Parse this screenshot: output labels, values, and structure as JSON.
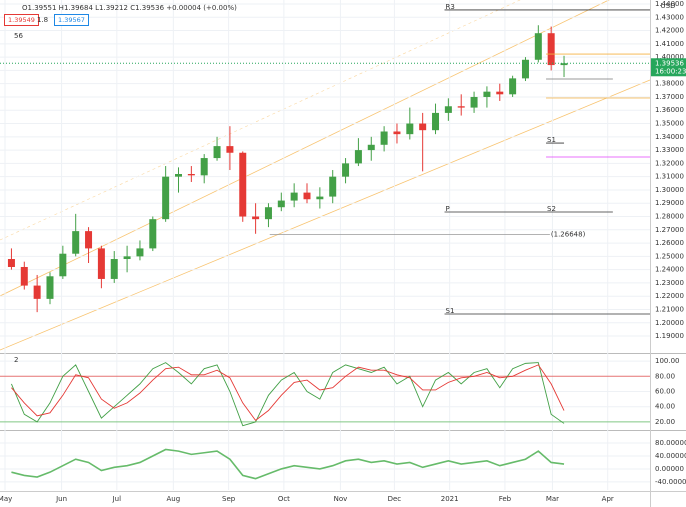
{
  "chart_data": [
    {
      "type": "candlestick",
      "ohlc_text": "O1.39551 H1.39684 L1.39212 C1.39536 +0.00004 (+0.00%)",
      "sell": "1.39549",
      "spread": "1.8",
      "buy": "1.39567",
      "study": "56",
      "currency": "USD",
      "up_color": "#43a047",
      "down_color": "#e53935",
      "x": [
        0.5,
        1.5,
        2.5,
        3.5,
        4.5,
        5.5,
        6.5,
        7.5,
        8.5,
        9.5,
        10.5,
        11.5,
        12.5,
        13.5,
        14.5,
        15.5,
        16.5,
        17.5,
        18.5,
        19.5,
        20.5,
        21.5,
        22.5,
        23.5,
        24.5,
        25.5,
        26.5,
        27.5,
        28.5,
        29.5,
        30.5,
        31.5,
        32.5,
        33.5,
        34.5,
        35.5,
        36.5,
        37.5,
        38.5,
        39.5,
        40.5,
        41.5,
        42.5,
        43.5
      ],
      "open": [
        1.248,
        1.242,
        1.228,
        1.218,
        1.235,
        1.252,
        1.269,
        1.256,
        1.233,
        1.248,
        1.25,
        1.256,
        1.278,
        1.31,
        1.312,
        1.311,
        1.324,
        1.333,
        1.328,
        1.28,
        1.278,
        1.287,
        1.292,
        1.298,
        1.293,
        1.295,
        1.31,
        1.32,
        1.33,
        1.334,
        1.344,
        1.342,
        1.35,
        1.345,
        1.358,
        1.363,
        1.362,
        1.37,
        1.374,
        1.372,
        1.384,
        1.398,
        1.418,
        1.394
      ],
      "high": [
        1.256,
        1.246,
        1.236,
        1.238,
        1.258,
        1.282,
        1.272,
        1.258,
        1.254,
        1.258,
        1.262,
        1.28,
        1.318,
        1.317,
        1.318,
        1.327,
        1.34,
        1.348,
        1.329,
        1.29,
        1.29,
        1.298,
        1.305,
        1.305,
        1.302,
        1.315,
        1.324,
        1.339,
        1.34,
        1.348,
        1.35,
        1.362,
        1.358,
        1.365,
        1.369,
        1.372,
        1.374,
        1.378,
        1.38,
        1.386,
        1.4,
        1.424,
        1.423,
        1.401
      ],
      "low": [
        1.24,
        1.225,
        1.208,
        1.214,
        1.233,
        1.25,
        1.245,
        1.226,
        1.23,
        1.238,
        1.247,
        1.254,
        1.276,
        1.298,
        1.306,
        1.305,
        1.322,
        1.315,
        1.276,
        1.267,
        1.272,
        1.284,
        1.287,
        1.29,
        1.286,
        1.29,
        1.305,
        1.318,
        1.322,
        1.329,
        1.335,
        1.338,
        1.314,
        1.342,
        1.352,
        1.356,
        1.358,
        1.362,
        1.367,
        1.37,
        1.382,
        1.396,
        1.39,
        1.385
      ],
      "close": [
        1.242,
        1.228,
        1.218,
        1.235,
        1.252,
        1.269,
        1.256,
        1.233,
        1.248,
        1.25,
        1.256,
        1.278,
        1.31,
        1.312,
        1.311,
        1.324,
        1.333,
        1.328,
        1.28,
        1.278,
        1.287,
        1.292,
        1.298,
        1.293,
        1.295,
        1.31,
        1.32,
        1.33,
        1.334,
        1.344,
        1.342,
        1.35,
        1.345,
        1.358,
        1.363,
        1.362,
        1.37,
        1.374,
        1.372,
        1.384,
        1.398,
        1.418,
        1.394,
        1.3954
      ],
      "xlim": [
        -0.39,
        50.19
      ],
      "xticks": [
        {
          "value": 0,
          "label": "May"
        },
        {
          "value": 4.4,
          "label": "Jun"
        },
        {
          "value": 8.7,
          "label": "Jul"
        },
        {
          "value": 13.1,
          "label": "Aug"
        },
        {
          "value": 17.4,
          "label": "Sep"
        },
        {
          "value": 21.7,
          "label": "Oct"
        },
        {
          "value": 26.1,
          "label": "Nov"
        },
        {
          "value": 30.3,
          "label": "Dec"
        },
        {
          "value": 34.6,
          "label": "2021"
        },
        {
          "value": 38.9,
          "label": "Feb"
        },
        {
          "value": 42.6,
          "label": "Mar"
        },
        {
          "value": 46.9,
          "label": "Apr"
        }
      ],
      "ylim": [
        1.178,
        1.443
      ],
      "yticks": [
        {
          "value": 1.44,
          "label": "1.44000"
        },
        {
          "value": 1.43,
          "label": "1.43000"
        },
        {
          "value": 1.42,
          "label": "1.42000"
        },
        {
          "value": 1.41,
          "label": "1.41000"
        },
        {
          "value": 1.4,
          "label": "1.40000"
        },
        {
          "value": 1.39,
          "label": "1.39000"
        },
        {
          "value": 1.38,
          "label": "1.38000"
        },
        {
          "value": 1.37,
          "label": "1.37000"
        },
        {
          "value": 1.36,
          "label": "1.36000"
        },
        {
          "value": 1.35,
          "label": "1.35000"
        },
        {
          "value": 1.34,
          "label": "1.34000"
        },
        {
          "value": 1.33,
          "label": "1.33000"
        },
        {
          "value": 1.32,
          "label": "1.32000"
        },
        {
          "value": 1.31,
          "label": "1.31000"
        },
        {
          "value": 1.3,
          "label": "1.30000"
        },
        {
          "value": 1.29,
          "label": "1.29000"
        },
        {
          "value": 1.28,
          "label": "1.28000"
        },
        {
          "value": 1.27,
          "label": "1.27000"
        },
        {
          "value": 1.26,
          "label": "1.26000"
        },
        {
          "value": 1.25,
          "label": "1.25000"
        },
        {
          "value": 1.24,
          "label": "1.24000"
        },
        {
          "value": 1.23,
          "label": "1.23000"
        },
        {
          "value": 1.22,
          "label": "1.22000"
        },
        {
          "value": 1.21,
          "label": "1.21000"
        },
        {
          "value": 1.2,
          "label": "1.20000"
        },
        {
          "value": 1.19,
          "label": "1.19000"
        }
      ],
      "grid": true,
      "levels": [
        {
          "name": "R3",
          "value": 1.4355,
          "from": 34.2,
          "to": 50.19,
          "color": "#333333"
        },
        {
          "name": "S1",
          "value": 1.3353,
          "from": 42.1,
          "to": 43.5,
          "color": "#333333"
        },
        {
          "name": "P",
          "value": 1.2834,
          "from": 34.2,
          "to": 42.1,
          "color": "#333333"
        },
        {
          "name": "S2",
          "value": 1.2834,
          "from": 42.1,
          "to": 47.3,
          "color": "#333333"
        },
        {
          "name": "S1",
          "value": 1.2066,
          "from": 34.2,
          "to": 50.19,
          "color": "#333333"
        },
        {
          "label": "(1.26648)",
          "value": 1.26648,
          "from": 20.6,
          "to": 42.4,
          "color": "#999999"
        },
        {
          "value": 1.4023,
          "from": 42.1,
          "to": 50.19,
          "color": "#f5b041"
        },
        {
          "value": 1.3835,
          "from": 42.1,
          "to": 47.3,
          "color": "#777777"
        },
        {
          "value": 1.3692,
          "from": 42.1,
          "to": 50.19,
          "color": "#f5b041"
        },
        {
          "value": 1.3248,
          "from": 42.1,
          "to": 50.19,
          "color": "#e040fb"
        }
      ],
      "last": {
        "value": 1.39536,
        "label": "1.39536",
        "countdown": "16:00:23",
        "color": "#26a65b"
      }
    },
    {
      "type": "line",
      "study": "2",
      "x": [
        0.5,
        1.5,
        2.5,
        3.5,
        4.5,
        5.5,
        6.5,
        7.5,
        8.5,
        9.5,
        10.5,
        11.5,
        12.5,
        13.5,
        14.5,
        15.5,
        16.5,
        17.5,
        18.5,
        19.5,
        20.5,
        21.5,
        22.5,
        23.5,
        24.5,
        25.5,
        26.5,
        27.5,
        28.5,
        29.5,
        30.5,
        31.5,
        32.5,
        33.5,
        34.5,
        35.5,
        36.5,
        37.5,
        38.5,
        39.5,
        40.5,
        41.5,
        42.5,
        43.5
      ],
      "series": [
        {
          "color": "#43a047",
          "values": [
            70,
            30,
            20,
            45,
            80,
            95,
            60,
            25,
            40,
            55,
            70,
            90,
            98,
            85,
            70,
            90,
            95,
            60,
            15,
            20,
            55,
            75,
            85,
            60,
            50,
            85,
            95,
            90,
            85,
            92,
            70,
            80,
            40,
            75,
            85,
            70,
            85,
            90,
            65,
            90,
            97,
            98,
            30,
            18
          ]
        },
        {
          "color": "#e53935",
          "values": [
            65,
            45,
            28,
            32,
            55,
            82,
            78,
            50,
            38,
            45,
            58,
            75,
            90,
            92,
            82,
            82,
            88,
            78,
            45,
            22,
            35,
            55,
            72,
            75,
            62,
            65,
            80,
            92,
            88,
            88,
            82,
            78,
            62,
            62,
            72,
            78,
            80,
            85,
            78,
            80,
            88,
            95,
            70,
            35
          ]
        }
      ],
      "ylim": [
        12,
        108
      ],
      "yticks": [
        {
          "value": 100,
          "label": "100.00"
        },
        {
          "value": 80,
          "label": "80.00"
        },
        {
          "value": 60,
          "label": "60.00"
        },
        {
          "value": 40,
          "label": "40.00"
        },
        {
          "value": 20,
          "label": "20.00"
        }
      ]
    },
    {
      "type": "line",
      "x": [
        0.5,
        1.5,
        2.5,
        3.5,
        4.5,
        5.5,
        6.5,
        7.5,
        8.5,
        9.5,
        10.5,
        11.5,
        12.5,
        13.5,
        14.5,
        15.5,
        16.5,
        17.5,
        18.5,
        19.5,
        20.5,
        21.5,
        22.5,
        23.5,
        24.5,
        25.5,
        26.5,
        27.5,
        28.5,
        29.5,
        30.5,
        31.5,
        32.5,
        33.5,
        34.5,
        35.5,
        36.5,
        37.5,
        38.5,
        39.5,
        40.5,
        41.5,
        42.5,
        43.5
      ],
      "series": [
        {
          "color": "#66bb6a",
          "values": [
            -10,
            -20,
            -25,
            -10,
            10,
            30,
            20,
            -5,
            5,
            10,
            20,
            40,
            60,
            55,
            45,
            50,
            55,
            30,
            -20,
            -30,
            -15,
            0,
            10,
            5,
            0,
            10,
            25,
            30,
            20,
            25,
            15,
            20,
            5,
            15,
            25,
            15,
            20,
            25,
            10,
            20,
            30,
            55,
            20,
            15
          ]
        }
      ],
      "ylim": [
        -65,
        114
      ],
      "yticks": [
        {
          "value": 80,
          "label": "80.00000"
        },
        {
          "value": 40,
          "label": "40.00000"
        },
        {
          "value": 0,
          "label": "0.00000"
        },
        {
          "value": -40,
          "label": "-40.00000"
        }
      ]
    }
  ]
}
